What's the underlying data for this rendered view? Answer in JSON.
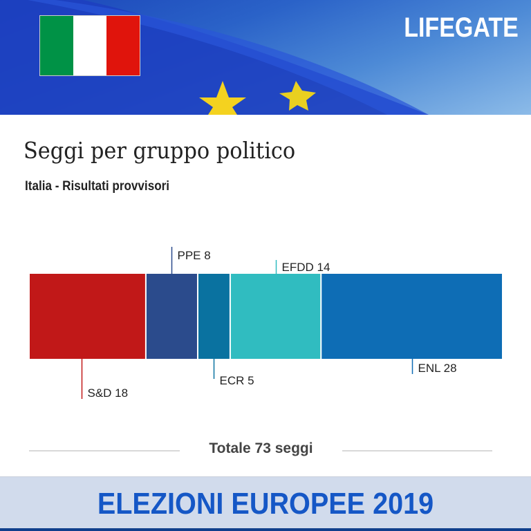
{
  "banner": {
    "logo": "LIFEGATE",
    "flag": "italy-flag",
    "flag_colors": [
      "#009246",
      "#ffffff",
      "#e0140c"
    ],
    "background": "eu-flag-waving"
  },
  "chart_data": {
    "type": "bar",
    "orientation": "horizontal-stacked",
    "title": "Seggi per gruppo politico",
    "subtitle": "Italia - Risultati provvisori",
    "categories": [
      "S&D",
      "PPE",
      "ECR",
      "EFDD",
      "ENL"
    ],
    "values": [
      18,
      8,
      5,
      14,
      28
    ],
    "labels": [
      "S&D 18",
      "PPE 8",
      "ECR 5",
      "EFDD 14",
      "ENL 28"
    ],
    "colors": [
      "#c11818",
      "#2b4b8c",
      "#0a72a0",
      "#30bcc0",
      "#0e6db5"
    ],
    "total_label": "Totale 73 seggi"
  },
  "footer": {
    "title": "ELEZIONI EUROPEE 2019"
  }
}
